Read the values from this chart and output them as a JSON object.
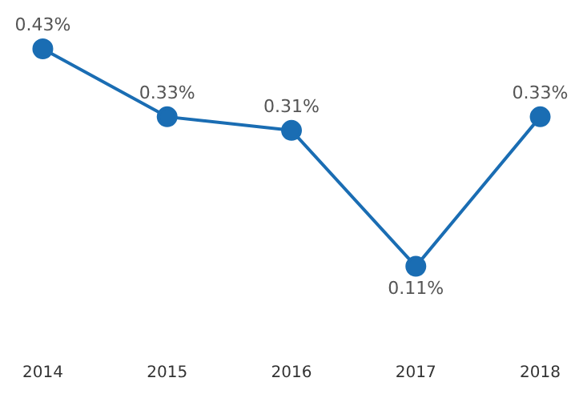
{
  "chart_data": {
    "type": "line",
    "categories": [
      "2014",
      "2015",
      "2016",
      "2017",
      "2018"
    ],
    "series": [
      {
        "color": "#1a6db3",
        "values": [
          0.43,
          0.33,
          0.31,
          0.11,
          0.33
        ],
        "value_labels": [
          "0.43%",
          "0.33%",
          "0.31%",
          "0.11%",
          "0.33%"
        ]
      }
    ],
    "marker": "circle",
    "line_style": "solid",
    "grid": false,
    "legend": false,
    "tick_labels": "x"
  }
}
